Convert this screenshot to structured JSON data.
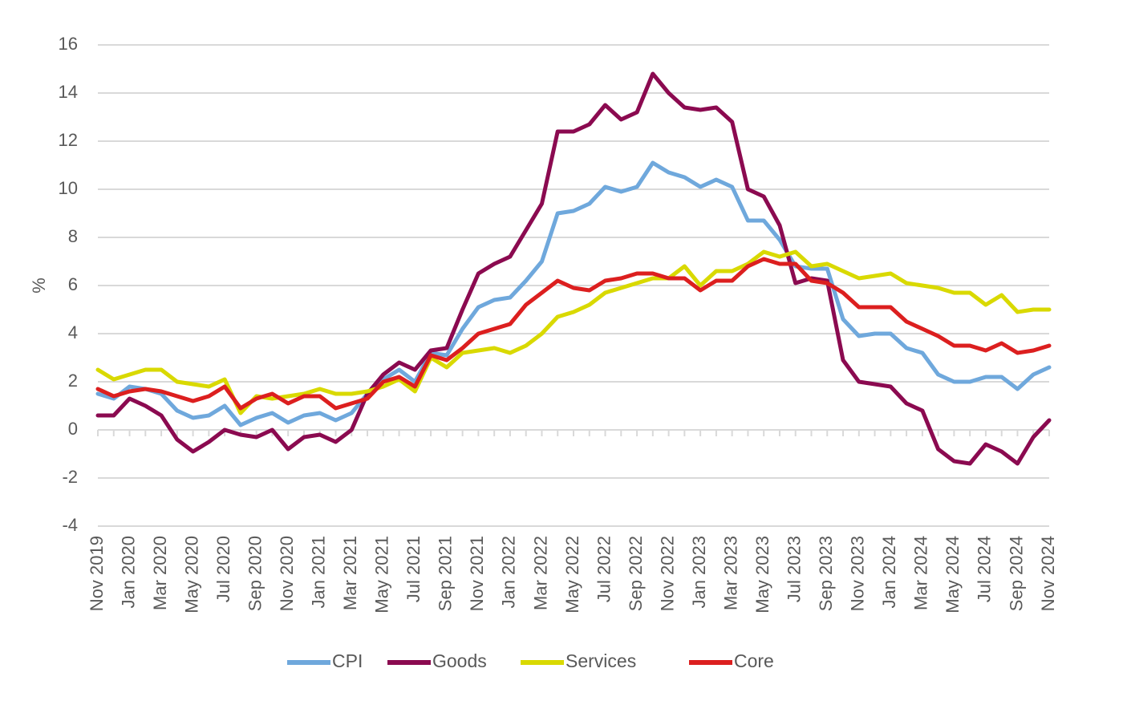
{
  "chart_data": {
    "type": "line",
    "title": "",
    "xlabel": "",
    "ylabel": "%",
    "ylim": [
      -4,
      16
    ],
    "yticks": [
      -4,
      -2,
      0,
      2,
      4,
      6,
      8,
      10,
      12,
      14,
      16
    ],
    "grid": "horizontal",
    "legend_position": "bottom",
    "x": [
      "Nov 2019",
      "Dec 2019",
      "Jan 2020",
      "Feb 2020",
      "Mar 2020",
      "Apr 2020",
      "May 2020",
      "Jun 2020",
      "Jul 2020",
      "Aug 2020",
      "Sep 2020",
      "Oct 2020",
      "Nov 2020",
      "Dec 2020",
      "Jan 2021",
      "Feb 2021",
      "Mar 2021",
      "Apr 2021",
      "May 2021",
      "Jun 2021",
      "Jul 2021",
      "Aug 2021",
      "Sep 2021",
      "Oct 2021",
      "Nov 2021",
      "Dec 2021",
      "Jan 2022",
      "Feb 2022",
      "Mar 2022",
      "Apr 2022",
      "May 2022",
      "Jun 2022",
      "Jul 2022",
      "Aug 2022",
      "Sep 2022",
      "Oct 2022",
      "Nov 2022",
      "Dec 2022",
      "Jan 2023",
      "Feb 2023",
      "Mar 2023",
      "Apr 2023",
      "May 2023",
      "Jun 2023",
      "Jul 2023",
      "Aug 2023",
      "Sep 2023",
      "Oct 2023",
      "Nov 2023",
      "Dec 2023",
      "Jan 2024",
      "Feb 2024",
      "Mar 2024",
      "Apr 2024",
      "May 2024",
      "Jun 2024",
      "Jul 2024",
      "Aug 2024",
      "Sep 2024",
      "Oct 2024",
      "Nov 2024"
    ],
    "xticklabels": [
      "Nov 2019",
      "Jan 2020",
      "Mar 2020",
      "May 2020",
      "Jul 2020",
      "Sep 2020",
      "Nov 2020",
      "Jan 2021",
      "Mar 2021",
      "May 2021",
      "Jul 2021",
      "Sep 2021",
      "Nov 2021",
      "Jan 2022",
      "Mar 2022",
      "May 2022",
      "Jul 2022",
      "Sep 2022",
      "Nov 2022",
      "Jan 2023",
      "Mar 2023",
      "May 2023",
      "Jul 2023",
      "Sep 2023",
      "Nov 2023",
      "Jan 2024",
      "Mar 2024",
      "May 2024",
      "Jul 2024",
      "Sep 2024",
      "Nov 2024"
    ],
    "series": [
      {
        "name": "CPI",
        "color": "#6fa8dc",
        "values": [
          1.5,
          1.3,
          1.8,
          1.7,
          1.5,
          0.8,
          0.5,
          0.6,
          1.0,
          0.2,
          0.5,
          0.7,
          0.3,
          0.6,
          0.7,
          0.4,
          0.7,
          1.5,
          2.1,
          2.5,
          2.0,
          3.2,
          3.1,
          4.2,
          5.1,
          5.4,
          5.5,
          6.2,
          7.0,
          9.0,
          9.1,
          9.4,
          10.1,
          9.9,
          10.1,
          11.1,
          10.7,
          10.5,
          10.1,
          10.4,
          10.1,
          8.7,
          8.7,
          7.9,
          6.8,
          6.7,
          6.7,
          4.6,
          3.9,
          4.0,
          4.0,
          3.4,
          3.2,
          2.3,
          2.0,
          2.0,
          2.2,
          2.2,
          1.7,
          2.3,
          2.6
        ]
      },
      {
        "name": "Goods",
        "color": "#8b0a50",
        "values": [
          0.6,
          0.6,
          1.3,
          1.0,
          0.6,
          -0.4,
          -0.9,
          -0.5,
          0.0,
          -0.2,
          -0.3,
          0.0,
          -0.8,
          -0.3,
          -0.2,
          -0.5,
          0.0,
          1.5,
          2.3,
          2.8,
          2.5,
          3.3,
          3.4,
          5.0,
          6.5,
          6.9,
          7.2,
          8.3,
          9.4,
          12.4,
          12.4,
          12.7,
          13.5,
          12.9,
          13.2,
          14.8,
          14.0,
          13.4,
          13.3,
          13.4,
          12.8,
          10.0,
          9.7,
          8.5,
          6.1,
          6.3,
          6.2,
          2.9,
          2.0,
          1.9,
          1.8,
          1.1,
          0.8,
          -0.8,
          -1.3,
          -1.4,
          -0.6,
          -0.9,
          -1.4,
          -0.3,
          0.4
        ]
      },
      {
        "name": "Services",
        "color": "#d9d900",
        "values": [
          2.5,
          2.1,
          2.3,
          2.5,
          2.5,
          2.0,
          1.9,
          1.8,
          2.1,
          0.7,
          1.4,
          1.3,
          1.4,
          1.5,
          1.7,
          1.5,
          1.5,
          1.6,
          1.8,
          2.1,
          1.6,
          3.0,
          2.6,
          3.2,
          3.3,
          3.4,
          3.2,
          3.5,
          4.0,
          4.7,
          4.9,
          5.2,
          5.7,
          5.9,
          6.1,
          6.3,
          6.3,
          6.8,
          6.0,
          6.6,
          6.6,
          6.9,
          7.4,
          7.2,
          7.4,
          6.8,
          6.9,
          6.6,
          6.3,
          6.4,
          6.5,
          6.1,
          6.0,
          5.9,
          5.7,
          5.7,
          5.2,
          5.6,
          4.9,
          5.0,
          5.0
        ]
      },
      {
        "name": "Core",
        "color": "#dc1f1f",
        "values": [
          1.7,
          1.4,
          1.6,
          1.7,
          1.6,
          1.4,
          1.2,
          1.4,
          1.8,
          0.9,
          1.3,
          1.5,
          1.1,
          1.4,
          1.4,
          0.9,
          1.1,
          1.3,
          2.0,
          2.2,
          1.8,
          3.1,
          2.9,
          3.4,
          4.0,
          4.2,
          4.4,
          5.2,
          5.7,
          6.2,
          5.9,
          5.8,
          6.2,
          6.3,
          6.5,
          6.5,
          6.3,
          6.3,
          5.8,
          6.2,
          6.2,
          6.8,
          7.1,
          6.9,
          6.9,
          6.2,
          6.1,
          5.7,
          5.1,
          5.1,
          5.1,
          4.5,
          4.2,
          3.9,
          3.5,
          3.5,
          3.3,
          3.6,
          3.2,
          3.3,
          3.5
        ]
      }
    ]
  }
}
